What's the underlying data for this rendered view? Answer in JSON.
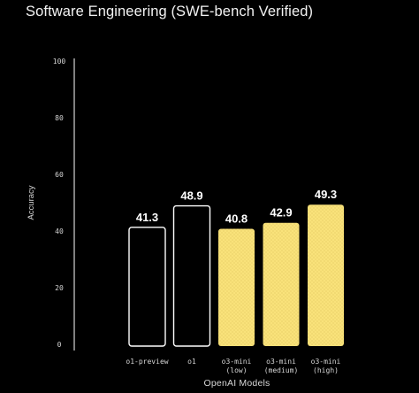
{
  "chart_data": {
    "type": "bar",
    "title": "Software Engineering (SWE-bench Verified)",
    "xlabel": "OpenAI Models",
    "ylabel": "Accuracy",
    "ylim": [
      0,
      100
    ],
    "yticks": [
      "0",
      "20",
      "40",
      "60",
      "80",
      "100"
    ],
    "grid": false,
    "categories": [
      {
        "lines": [
          "o1-preview"
        ]
      },
      {
        "lines": [
          "o1"
        ]
      },
      {
        "lines": [
          "o3-mini",
          "(low)"
        ]
      },
      {
        "lines": [
          "o3-mini",
          "(medium)"
        ]
      },
      {
        "lines": [
          "o3-mini",
          "(high)"
        ]
      }
    ],
    "values": [
      41.3,
      48.9,
      40.8,
      42.9,
      49.3
    ],
    "value_labels": [
      "41.3",
      "48.9",
      "40.8",
      "42.9",
      "49.3"
    ],
    "styles": [
      "outline",
      "outline",
      "filled",
      "filled",
      "filled"
    ],
    "colors": {
      "outline": "#ffffff",
      "fill": "#f9e27a",
      "fill_dots": "#d9bd55",
      "background": "#000000"
    }
  }
}
